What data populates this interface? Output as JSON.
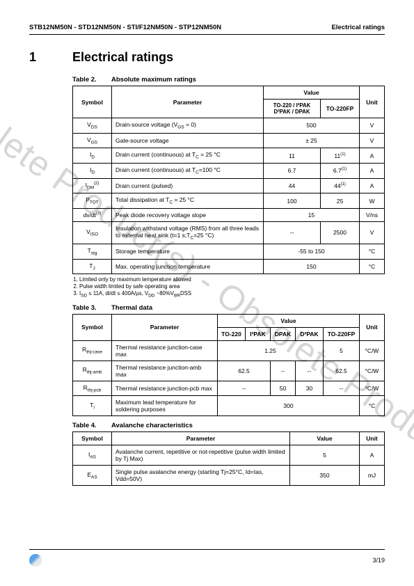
{
  "header": {
    "left": "STB12NM50N - STD12NM50N - STI/F12NM50N - STP12NM50N",
    "right": "Electrical ratings"
  },
  "section": {
    "num": "1",
    "title": "Electrical ratings"
  },
  "table2": {
    "caption_num": "Table 2.",
    "caption_title": "Absolute maximum ratings",
    "head": {
      "symbol": "Symbol",
      "parameter": "Parameter",
      "value_group": "Value",
      "col_a": "TO-220 / I²PAK D²PAK / DPAK",
      "col_b": "TO-220FP",
      "unit": "Unit"
    },
    "rows": [
      {
        "sym": "V",
        "sub": "DS",
        "param": "Drain-source voltage (V_GS = 0)",
        "va": "500",
        "span": true,
        "unit": "V"
      },
      {
        "sym": "V",
        "sub": "GS",
        "param": "Gate-source voltage",
        "va": "± 25",
        "span": true,
        "unit": "V"
      },
      {
        "sym": "I",
        "sub": "D",
        "param": "Drain current (continuous) at T_C = 25 °C",
        "va": "11",
        "vb": "11",
        "sup_b": "(1)",
        "unit": "A"
      },
      {
        "sym": "I",
        "sub": "D",
        "param": "Drain current (continuous) at T_C=100 °C",
        "va": "6.7",
        "vb": "6.7",
        "sup_b": "(1)",
        "unit": "A"
      },
      {
        "sym": "I",
        "sub": "DM",
        "sup": "(2)",
        "param": "Drain current (pulsed)",
        "va": "44",
        "vb": "44",
        "sup_b": "(1)",
        "unit": "A"
      },
      {
        "sym": "P",
        "sub": "TOT",
        "param": "Total dissipation at T_C = 25 °C",
        "va": "100",
        "vb": "25",
        "unit": "W"
      },
      {
        "sym": "dv/dt",
        "sup": "(3)",
        "param": "Peak diode recovery voltage slope",
        "va": "15",
        "span": true,
        "unit": "V/ns"
      },
      {
        "sym": "V",
        "sub": "ISO",
        "param": "Insulation withstand voltage (RMS) from all three leads to external heat sink (t=1 s;T_C=25 °C)",
        "va": "--",
        "vb": "2500",
        "unit": "V"
      },
      {
        "sym": "T",
        "sub": "stg",
        "param": "Storage temperature",
        "va": "-55 to 150",
        "span": true,
        "unit": "°C"
      },
      {
        "sym": "T",
        "sub": "J",
        "param": "Max. operating junction temperature",
        "va": "150",
        "span": true,
        "unit": "°C"
      }
    ]
  },
  "notes": [
    "Limited only by maximum temperature allowed",
    "Pulse width limited by safe operating area",
    "I_SD ≤ 11A, di/dt ≤ 400A/µs, V_DD ~80%V_(BR)DSS"
  ],
  "table3": {
    "caption_num": "Table 3.",
    "caption_title": "Thermal data",
    "head": {
      "symbol": "Symbol",
      "parameter": "Parameter",
      "value_group": "Value",
      "c1": "TO-220",
      "c2": "I²PAK",
      "c3": "DPAK",
      "c4": "D²PAK",
      "c5": "TO-220FP",
      "unit": "Unit"
    },
    "rows": [
      {
        "sym": "R",
        "sub": "thj-case",
        "param": "Thermal resistance junction-case max",
        "v": [
          "1.25",
          "",
          "",
          "",
          "5"
        ],
        "merge14": true,
        "unit": "°C/W"
      },
      {
        "sym": "R",
        "sub": "thj-amb",
        "param": "Thermal resistance junction-amb max",
        "v": [
          "62.5",
          "",
          "--",
          "--",
          "62.5"
        ],
        "merge12": true,
        "unit": "°C/W"
      },
      {
        "sym": "R",
        "sub": "thj-pcb",
        "param": "Thermal resistance junction-pcb max",
        "v": [
          "--",
          "",
          "50",
          "30",
          "--"
        ],
        "merge12": true,
        "unit": "°C/W"
      },
      {
        "sym": "T",
        "sub": "l",
        "param": "Maximum lead temperature for soldering purposes",
        "v": [
          "300"
        ],
        "mergeall": true,
        "unit": "°C"
      }
    ]
  },
  "table4": {
    "caption_num": "Table 4.",
    "caption_title": "Avalanche characteristics",
    "head": {
      "symbol": "Symbol",
      "parameter": "Parameter",
      "value": "Value",
      "unit": "Unit"
    },
    "rows": [
      {
        "sym": "I",
        "sub": "AS",
        "param": "Avalanche current, repetitive or not-repetitive (pulse width limited by Tj Max)",
        "val": "5",
        "unit": "A"
      },
      {
        "sym": "E",
        "sub": "AS",
        "param": "Single pulse avalanche energy (starting Tj=25°C, Id=Ias, Vdd=50V)",
        "val": "350",
        "unit": "mJ"
      }
    ]
  },
  "watermark": "Obsolete Product(s) - Obsolete Product(s)",
  "footer": {
    "page": "3/19"
  }
}
